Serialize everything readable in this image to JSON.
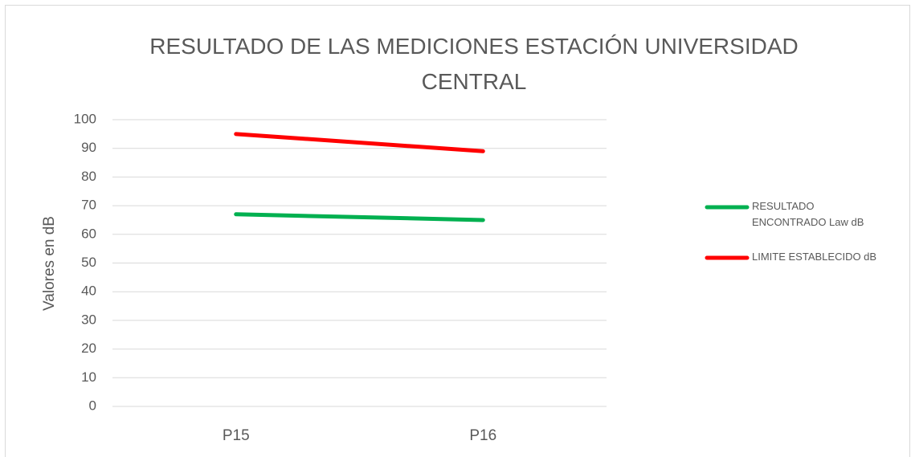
{
  "chart_data": {
    "type": "line",
    "title": "RESULTADO DE LAS MEDICIONES ESTACIÓN UNIVERSIDAD CENTRAL",
    "y_label": "Valores en  dB",
    "categories": [
      "P15",
      "P16"
    ],
    "series": [
      {
        "name": "RESULTADO ENCONTRADO Law dB",
        "color": "#00b050",
        "values": [
          67,
          65
        ]
      },
      {
        "name": "LIMITE ESTABLECIDO dB",
        "color": "#ff0000",
        "values": [
          95,
          89
        ]
      }
    ],
    "ylim": [
      0,
      100
    ],
    "yticks": [
      0,
      10,
      20,
      30,
      40,
      50,
      60,
      70,
      80,
      90,
      100
    ],
    "grid": true,
    "legend": "right"
  }
}
